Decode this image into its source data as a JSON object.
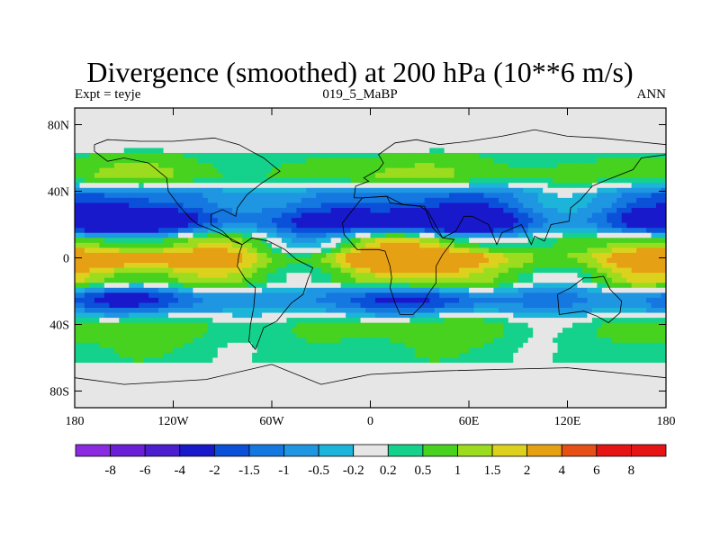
{
  "chart_data": {
    "type": "heatmap",
    "title": "Divergence (smoothed) at 200 hPa (10**6 m/s)",
    "subtitle_left": "Expt = teyje",
    "subtitle_center": "019_5_MaBP",
    "subtitle_right": "ANN",
    "x_ticks": [
      "180",
      "120W",
      "60W",
      "0",
      "60E",
      "120E",
      "180"
    ],
    "x_tick_values": [
      -180,
      -120,
      -60,
      0,
      60,
      120,
      180
    ],
    "y_ticks": [
      "80N",
      "40N",
      "0",
      "40S",
      "80S"
    ],
    "y_tick_values": [
      80,
      40,
      0,
      -40,
      -80
    ],
    "xlim": [
      -180,
      180
    ],
    "ylim": [
      -90,
      90
    ],
    "colorbar_levels": [
      "-8",
      "-6",
      "-4",
      "-2",
      "-1.5",
      "-1",
      "-0.5",
      "-0.2",
      "0.2",
      "0.5",
      "1",
      "1.5",
      "2",
      "4",
      "6",
      "8"
    ],
    "colorbar_colors": [
      "#8a2be2",
      "#6a1fd6",
      "#4b1ed0",
      "#1919cc",
      "#0a50d8",
      "#1478e0",
      "#1e96e1",
      "#1cb4d9",
      "#e6e6e6",
      "#14d28c",
      "#46d21e",
      "#9bdc1e",
      "#dcd21e",
      "#e6a014",
      "#e65014",
      "#e61414"
    ],
    "value_bands": [
      {
        "lat": 68,
        "band": 0.3
      },
      {
        "lat": 50,
        "band": 0.8
      },
      {
        "lat": 35,
        "band": -1.2
      },
      {
        "lat": 22,
        "band": -2.5
      },
      {
        "lat": 8,
        "band": 0.9
      },
      {
        "lat": 0,
        "band": 2.3
      },
      {
        "lat": -12,
        "band": 1.0
      },
      {
        "lat": -25,
        "band": -1.4
      },
      {
        "lat": -42,
        "band": 0.6
      },
      {
        "lat": -58,
        "band": 0.35
      },
      {
        "lat": -75,
        "band": 0.1
      }
    ]
  }
}
